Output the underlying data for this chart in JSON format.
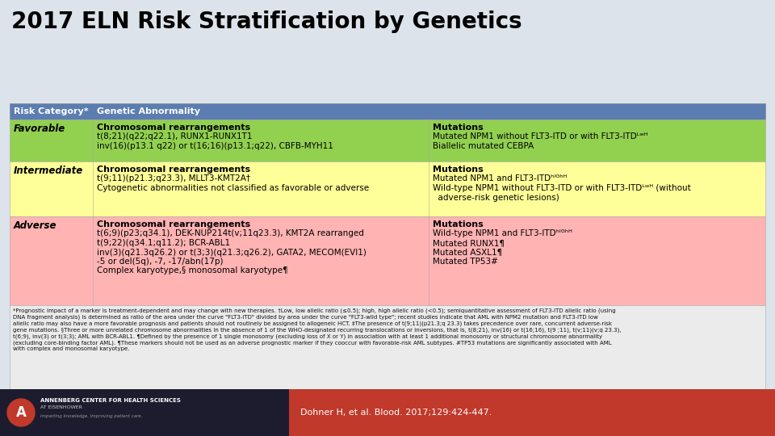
{
  "title": "2017 ELN Risk Stratification by Genetics",
  "background_color": "#dce3ea",
  "title_color": "#000000",
  "header_bg": "#5b7db1",
  "header_text_color": "#ffffff",
  "header_col1": "Risk Category*",
  "header_col2": "Genetic Abnormality",
  "favorable_bg": "#92d050",
  "intermediate_bg": "#ffff99",
  "adverse_bg": "#ffb3b3",
  "footnote_bg": "#e8e8e8",
  "bottom_left_bg": "#1a1a2e",
  "bottom_right_bg": "#c0392b",
  "rows": [
    {
      "category": "Favorable",
      "chrom_header": "Chromosomal rearrangements",
      "chrom_lines": [
        "t(8;21)(q22;q22.1), RUNX1-RUNX1T1",
        "inv(16)(p13.1 q22) or t(16;16)(p13.1;q22), CBFB-MYH11"
      ],
      "mut_header": "Mutations",
      "mut_lines": [
        "Mutated NPM1 without FLT3-ITD or with FLT3-ITDᴸʷᴴ",
        "Biallelic mutated CEBPA"
      ]
    },
    {
      "category": "Intermediate",
      "chrom_header": "Chromosomal rearrangements",
      "chrom_lines": [
        "t(9;11)(p21.3;q23.3), MLLT3-KMT2A†",
        "Cytogenetic abnormalities not classified as favorable or adverse"
      ],
      "mut_header": "Mutations",
      "mut_lines": [
        "Mutated NPM1 and FLT3-ITDʰᴵᴳʰᴴ",
        "Wild-type NPM1 without FLT3-ITD or with FLT3-ITDᴸʷᴴ (without",
        "  adverse-risk genetic lesions)"
      ]
    },
    {
      "category": "Adverse",
      "chrom_header": "Chromosomal rearrangements",
      "chrom_lines": [
        "t(6;9)(p23;q34.1), DEK-NUP214t(v;11q23.3), KMT2A rearranged",
        "t(9;22)(q34.1;q11.2); BCR-ABL1",
        "inv(3)(q21.3q26.2) or t(3;3)(q21.3;q26.2), GATA2, MECOM(EVI1)",
        "-5 or del(5q), -7, -17/abn(17p)",
        "Complex karyotype,§ monosomal karyotype¶"
      ],
      "mut_header": "Mutations",
      "mut_lines": [
        "Wild-type NPM1 and FLT3-ITDʰᴵᴳʰᴴ",
        "Mutated RUNX1¶",
        "Mutated ASXL1¶",
        "Mutated TP53#"
      ]
    }
  ],
  "footnote_lines": [
    "*Prognostic impact of a marker is treatment-dependent and may change with new therapies. †Low, low allelic ratio (≤0.5); high, high allelic ratio (<0.5); semiquantitative assessment of FLT3-ITD allelic ratio (using",
    "DNA fragment analysis) is determined as ratio of the area under the curve \"FLT3-ITD\" divided by area under the curve \"FLT3-wild type\"; recent studies indicate that AML with NPM2 mutation and FLT3-ITD low",
    "allelic ratio may also have a more favorable prognosis and patients should not routinely be assigned to allogeneic HCT. ‡The presence of t(9;11)(p21.3;q 23.3) takes precedence over rare, concurrent adverse-risk",
    "gene mutations. §Three or more unrelated chromosome abnormalities in the absence of 1 of the WHO-designated recurring translocations or inversions, that is, t(8;21), inv(16) or t(16;16), t(9 ;11), t(v;11)(v;q 23.3),",
    "t(6;9), inv(3) or t(3;3); AML with BCR-ABL1. ¶Defined by the presence of 1 single monosomy (excluding loss of X or Y) in association with at least 1 additional monosomy or structural chromosome abnormality",
    "(excluding core-binding factor AML). ¶These markers should not be used as an adverse prognostic marker if they cooccur with favorable-risk AML subtypes. #TP53 mutations are significantly associated with AML",
    "with complex and monosomal karyotype."
  ],
  "citation": "Dohner H, et al. Blood. 2017;129:424-447.",
  "logo_text1": "ANNENBERG CENTER FOR HEALTH SCIENCES",
  "logo_text2": "AT EISENHOWER",
  "logo_text3": "Imparting knowledge. Improving patient care."
}
